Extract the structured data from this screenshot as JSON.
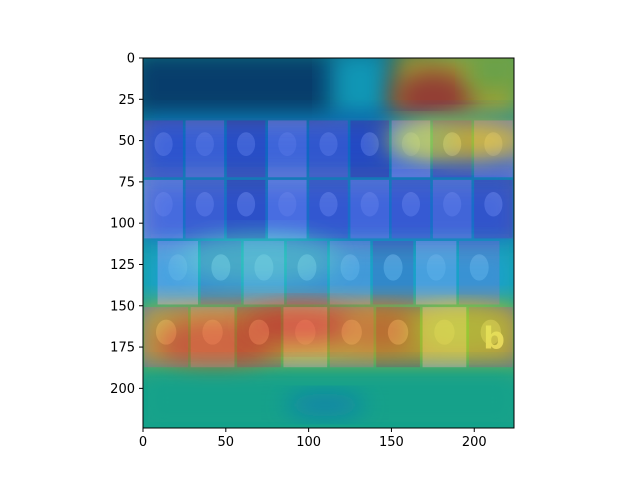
{
  "chart_data": {
    "type": "heatmap",
    "title": "",
    "xlabel": "",
    "ylabel": "",
    "xlim": [
      0,
      224
    ],
    "ylim": [
      224,
      0
    ],
    "xticks": [
      0,
      50,
      100,
      150,
      200
    ],
    "yticks": [
      0,
      25,
      50,
      75,
      100,
      125,
      150,
      175,
      200
    ],
    "colormap": "jet",
    "overlay": "attention heatmap over a photo collage (4 rows of portrait photos on white/grey background, logo text 'b' at lower right)",
    "heat_regions": [
      {
        "desc": "top band above collage",
        "x": [
          0,
          224
        ],
        "y": [
          0,
          37
        ],
        "level": "low (dark blue), rising to red near x=160-200"
      },
      {
        "desc": "hot spot top-right",
        "cx": 175,
        "cy": 25,
        "level": "high (red)"
      },
      {
        "desc": "strong band at last collage row",
        "x": [
          0,
          224
        ],
        "y": [
          155,
          195
        ],
        "level": "high (orange/red)"
      },
      {
        "desc": "warm band row 1",
        "x": [
          0,
          224
        ],
        "y": [
          45,
          75
        ],
        "level": "medium (cyan/yellow at right)"
      },
      {
        "desc": "cool middle rows",
        "x": [
          0,
          224
        ],
        "y": [
          75,
          150
        ],
        "level": "low-medium (blue/cyan)"
      },
      {
        "desc": "bottom band",
        "x": [
          0,
          224
        ],
        "y": [
          195,
          224
        ],
        "level": "medium (teal)"
      }
    ],
    "collage_logo_text": "b"
  },
  "colors": {
    "cold": "#00007f",
    "blue": "#0000ff",
    "cyan": "#00ffff",
    "yellow": "#ffff00",
    "red": "#ff0000",
    "teal": "#17a589"
  }
}
